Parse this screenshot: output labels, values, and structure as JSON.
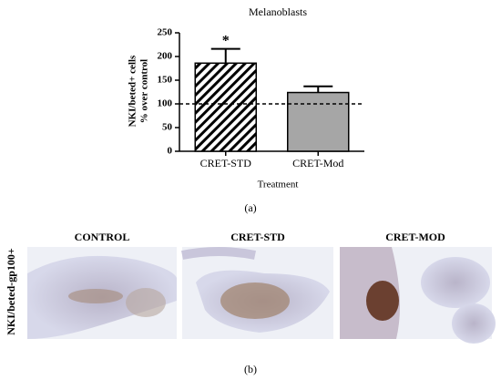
{
  "chart_data": {
    "type": "bar",
    "title": "Melanoblasts",
    "y_label": [
      "NKI/beted+ cells",
      "% over control"
    ],
    "x_label": "Treatment",
    "categories": [
      "CRET-STD",
      "CRET-Mod"
    ],
    "values": [
      186,
      124
    ],
    "errors": [
      30,
      13
    ],
    "colors": [
      "#000000",
      "#a6a6a6"
    ],
    "fill_styles": [
      "hatched",
      "solid"
    ],
    "ylim": [
      0,
      250
    ],
    "yticks": [
      0,
      50,
      100,
      150,
      200,
      250
    ],
    "reference_line": 100,
    "annotations": [
      {
        "text": "*",
        "category": 0
      }
    ]
  },
  "panel_a_label": "(a)",
  "panel_b": {
    "label": "(b)",
    "side_label": "NKI/beted-gp100+",
    "headers": [
      "CONTROL",
      "CRET-STD",
      "CRET-MOD"
    ]
  }
}
